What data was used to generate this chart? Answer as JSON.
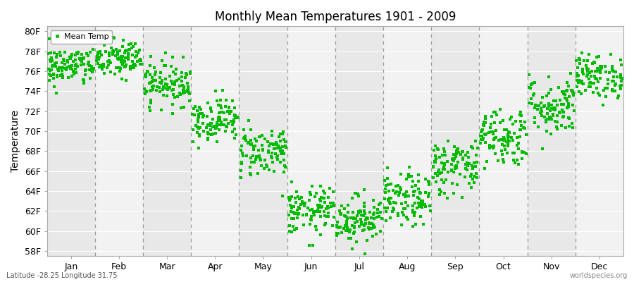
{
  "title": "Monthly Mean Temperatures 1901 - 2009",
  "ylabel": "Temperature",
  "xlabel_months": [
    "Jan",
    "Feb",
    "Mar",
    "Apr",
    "May",
    "Jun",
    "Jul",
    "Aug",
    "Sep",
    "Oct",
    "Nov",
    "Dec"
  ],
  "ytick_labels": [
    "58F",
    "60F",
    "62F",
    "64F",
    "66F",
    "68F",
    "70F",
    "72F",
    "74F",
    "76F",
    "78F",
    "80F"
  ],
  "ytick_values": [
    58,
    60,
    62,
    64,
    66,
    68,
    70,
    72,
    74,
    76,
    78,
    80
  ],
  "ylim": [
    57.5,
    80.5
  ],
  "dot_color": "#00bb00",
  "dot_size": 5,
  "background_color": "#ffffff",
  "plot_bg_even": "#e8e8e8",
  "plot_bg_odd": "#f2f2f2",
  "grid_color": "#ffffff",
  "dashed_line_color": "#999999",
  "legend_label": "Mean Temp",
  "footer_left": "Latitude -28.25 Longitude 31.75",
  "footer_right": "worldspecies.org",
  "n_years": 109,
  "mean_temps_F": [
    76.5,
    77.2,
    74.8,
    71.2,
    68.0,
    62.0,
    61.2,
    63.0,
    66.5,
    69.5,
    72.5,
    75.5
  ],
  "std_temps_F": [
    1.0,
    1.0,
    1.1,
    1.1,
    1.3,
    1.2,
    1.2,
    1.3,
    1.4,
    1.5,
    1.5,
    1.1
  ]
}
